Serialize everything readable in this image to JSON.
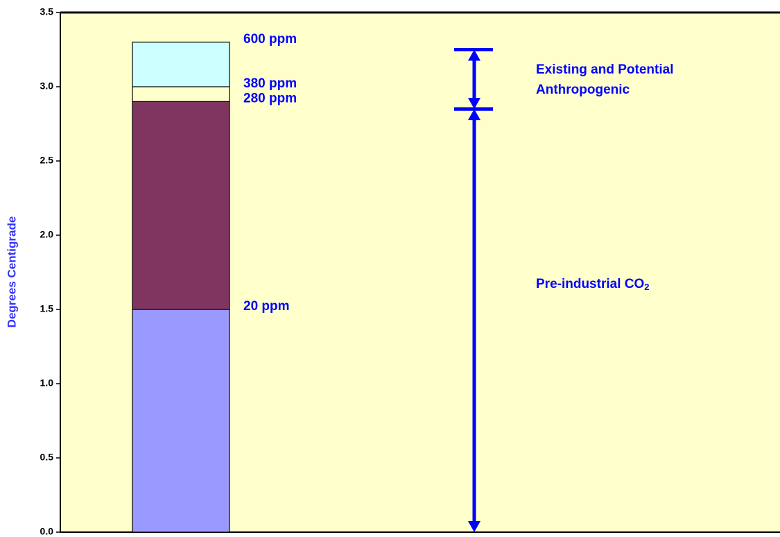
{
  "chart_data": {
    "type": "stacked_bar",
    "ylabel": "Degrees Centigrade",
    "ylim": [
      0,
      3.5
    ],
    "yticks": [
      {
        "value": 0,
        "label": "0.0"
      },
      {
        "value": 0.5,
        "label": "0.5"
      },
      {
        "value": 1,
        "label": "1.0"
      },
      {
        "value": 1.5,
        "label": "1.5"
      },
      {
        "value": 2,
        "label": "2.0"
      },
      {
        "value": 2.5,
        "label": "2.5"
      },
      {
        "value": 3,
        "label": "3.0"
      },
      {
        "value": 3.5,
        "label": "3.5"
      }
    ],
    "segments": [
      {
        "value": 1.5,
        "color": "#9999ff",
        "label": "20 ppm"
      },
      {
        "value": 1.4,
        "color": "#7f3560",
        "label": "280 ppm"
      },
      {
        "value": 0.1,
        "color": "#ffffcc",
        "label": "380 ppm"
      },
      {
        "value": 0.3,
        "color": "#ccffff",
        "label": "600 ppm"
      }
    ],
    "annotations": [
      {
        "from": 0,
        "to": 2.85,
        "text": [
          "Pre-industrial CO"
        ],
        "subscript": "2",
        "color": "#0000ff"
      },
      {
        "from": 2.85,
        "to": 3.25,
        "text": [
          "Existing and Potential",
          "Anthropogenic"
        ],
        "color": "#0000ff"
      }
    ]
  }
}
